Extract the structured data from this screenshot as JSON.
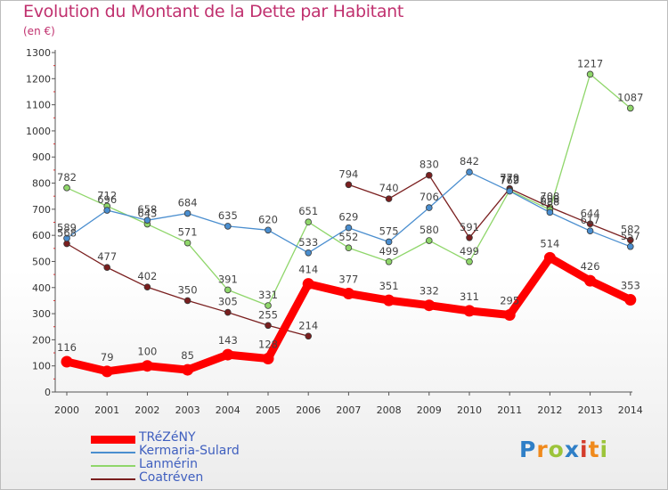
{
  "header": {
    "title": "Evolution du Montant de la Dette par Habitant",
    "subtitle": "(en €)"
  },
  "logo": {
    "letters": [
      "P",
      "r",
      "o",
      "x",
      "i",
      "t",
      "i"
    ],
    "colors": [
      "#2f7fc7",
      "#f08a1c",
      "#9cc43a",
      "#2f7fc7",
      "#d43c2b",
      "#f08a1c",
      "#9cc43a"
    ]
  },
  "chart_data": {
    "type": "line",
    "title": "Evolution du Montant de la Dette par Habitant",
    "subtitle": "(en €)",
    "xlabel": "",
    "ylabel": "",
    "x": [
      "2000",
      "2001",
      "2002",
      "2003",
      "2004",
      "2005",
      "2006",
      "2007",
      "2008",
      "2009",
      "2010",
      "2011",
      "2012",
      "2013",
      "2014"
    ],
    "ylim": [
      0,
      1300
    ],
    "yticks": [
      "0",
      "100",
      "200",
      "300",
      "400",
      "500",
      "600",
      "700",
      "800",
      "900",
      "1000",
      "1100",
      "1200",
      "1300"
    ],
    "grid": false,
    "legend": "bottom-left",
    "series": [
      {
        "name": "TRéZéNY",
        "color": "#ff0000",
        "values": [
          116,
          79,
          100,
          85,
          143,
          128,
          414,
          377,
          351,
          332,
          311,
          295,
          514,
          426,
          353
        ],
        "labels": [
          "116",
          "79",
          "100",
          "85",
          "143",
          "128",
          "414",
          "377",
          "351",
          "332",
          "311",
          "295",
          "514",
          "426",
          "353"
        ]
      },
      {
        "name": "Kermaria-Sulard",
        "color": "#4a8ecf",
        "values": [
          589,
          696,
          658,
          684,
          635,
          620,
          533,
          629,
          575,
          706,
          842,
          769,
          688,
          617,
          557
        ],
        "labels": [
          "589",
          "696",
          "658",
          "684",
          "635",
          "620",
          "533",
          "629",
          "575",
          "706",
          "842",
          "769",
          "688",
          "617",
          "557"
        ]
      },
      {
        "name": "Lanmérin",
        "color": "#8fd66a",
        "values": [
          782,
          712,
          643,
          571,
          391,
          331,
          651,
          552,
          499,
          580,
          499,
          772,
          698,
          1217,
          1087
        ],
        "labels": [
          "782",
          "712",
          "643",
          "571",
          "391",
          "331",
          "651",
          "552",
          "499",
          "580",
          "499",
          "772",
          "698",
          "1217",
          "1087"
        ]
      },
      {
        "name": "Coatréven",
        "color": "#7a1f1f",
        "values": [
          568,
          477,
          402,
          350,
          305,
          255,
          214,
          794,
          740,
          830,
          591,
          779,
          708,
          644,
          582
        ],
        "labels": [
          "568",
          "477",
          "402",
          "350",
          "305",
          "255",
          "214",
          "794",
          "740",
          "830",
          "591",
          "779",
          "708",
          "644",
          "582"
        ],
        "gaps": [
          6
        ]
      }
    ]
  }
}
